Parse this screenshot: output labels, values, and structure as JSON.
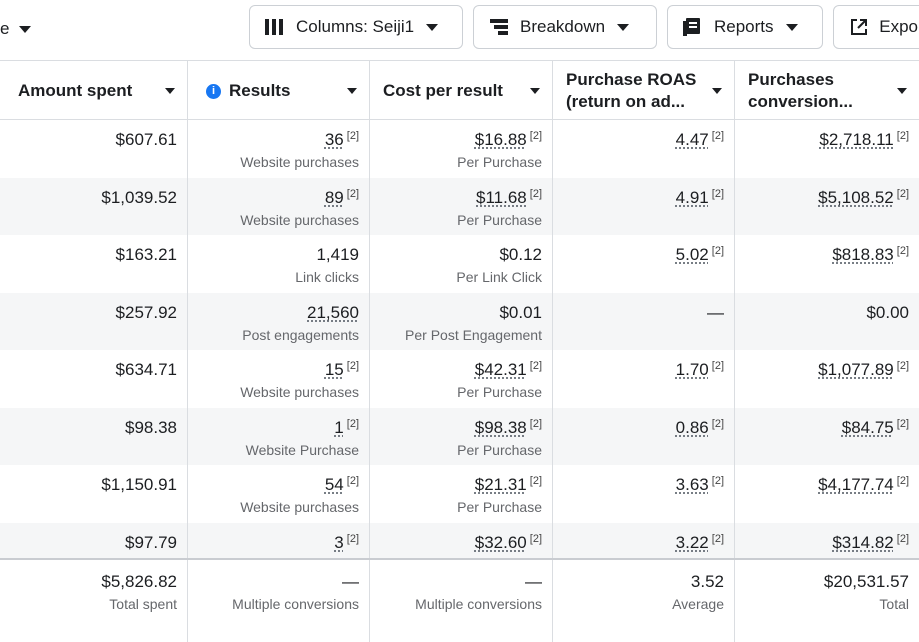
{
  "toolbar": {
    "left_fragment": "e",
    "columns_label": "Columns: Seiji1",
    "breakdown_label": "Breakdown",
    "reports_label": "Reports",
    "export_label": "Expo"
  },
  "table": {
    "headers": [
      "Amount spent",
      "Results",
      "Cost per result",
      "Purchase ROAS (return on ad...",
      "Purchases conversion..."
    ],
    "header_lines": {
      "roas": [
        "Purchase ROAS",
        "(return on ad..."
      ],
      "conversion": [
        "Purchases",
        "conversion..."
      ]
    },
    "ref_mark": "[2]",
    "rows": [
      {
        "spent": "$607.61",
        "results": "36",
        "results_sub": "Website purchases",
        "cpr": "$16.88",
        "cpr_sub": "Per Purchase",
        "roas": "4.47",
        "conv": "$2,718.11"
      },
      {
        "spent": "$1,039.52",
        "results": "89",
        "results_sub": "Website purchases",
        "cpr": "$11.68",
        "cpr_sub": "Per Purchase",
        "roas": "4.91",
        "conv": "$5,108.52"
      },
      {
        "spent": "$163.21",
        "results": "1,419",
        "results_sub": "Link clicks",
        "cpr": "$0.12",
        "cpr_sub": "Per Link Click",
        "roas": "5.02",
        "conv": "$818.83"
      },
      {
        "spent": "$257.92",
        "results": "21,560",
        "results_sub": "Post engagements",
        "cpr": "$0.01",
        "cpr_sub": "Per Post Engagement",
        "roas": "—",
        "conv": "$0.00"
      },
      {
        "spent": "$634.71",
        "results": "15",
        "results_sub": "Website purchases",
        "cpr": "$42.31",
        "cpr_sub": "Per Purchase",
        "roas": "1.70",
        "conv": "$1,077.89"
      },
      {
        "spent": "$98.38",
        "results": "1",
        "results_sub": "Website Purchase",
        "cpr": "$98.38",
        "cpr_sub": "Per Purchase",
        "roas": "0.86",
        "conv": "$84.75"
      },
      {
        "spent": "$1,150.91",
        "results": "54",
        "results_sub": "Website purchases",
        "cpr": "$21.31",
        "cpr_sub": "Per Purchase",
        "roas": "3.63",
        "conv": "$4,177.74"
      },
      {
        "spent": "$97.79",
        "results": "3",
        "results_sub": "",
        "cpr": "$32.60",
        "cpr_sub": "",
        "roas": "3.22",
        "conv": "$314.82"
      }
    ],
    "totals": {
      "spent": "$5,826.82",
      "spent_sub": "Total spent",
      "results": "—",
      "results_sub": "Multiple conversions",
      "cpr": "—",
      "cpr_sub": "Multiple conversions",
      "roas": "3.52",
      "roas_sub": "Average",
      "conv": "$20,531.57",
      "conv_sub": "Total"
    }
  },
  "colors": {
    "info_icon": "#1877f2",
    "row_alt": "#f5f6f7",
    "border": "#dadde1"
  }
}
